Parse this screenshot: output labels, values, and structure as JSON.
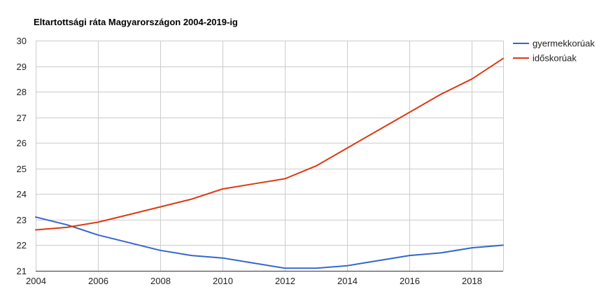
{
  "chart_data": {
    "type": "line",
    "title": "Eltartottsági ráta Magyarországon 2004-2019-ig",
    "xlabel": "",
    "ylabel": "",
    "x": [
      2004,
      2005,
      2006,
      2007,
      2008,
      2009,
      2010,
      2011,
      2012,
      2013,
      2014,
      2015,
      2016,
      2017,
      2018,
      2019
    ],
    "xlim": [
      2004,
      2019
    ],
    "ylim": [
      21,
      30
    ],
    "x_ticks": [
      "2004",
      "2006",
      "2008",
      "2010",
      "2012",
      "2014",
      "2016",
      "2018"
    ],
    "y_ticks": [
      "21",
      "22",
      "23",
      "24",
      "25",
      "26",
      "27",
      "28",
      "29",
      "30"
    ],
    "grid": true,
    "legend_position": "right",
    "series": [
      {
        "name": "gyermekkorúak",
        "color": "#3366cc",
        "values": [
          23.1,
          22.8,
          22.4,
          22.1,
          21.8,
          21.6,
          21.5,
          21.3,
          21.1,
          21.1,
          21.2,
          21.4,
          21.6,
          21.7,
          21.9,
          22.0
        ]
      },
      {
        "name": "időskorúak",
        "color": "#dc3912",
        "values": [
          22.6,
          22.7,
          22.9,
          23.2,
          23.5,
          23.8,
          24.2,
          24.4,
          24.6,
          25.1,
          25.8,
          26.5,
          27.2,
          27.9,
          28.5,
          29.3
        ]
      }
    ]
  }
}
